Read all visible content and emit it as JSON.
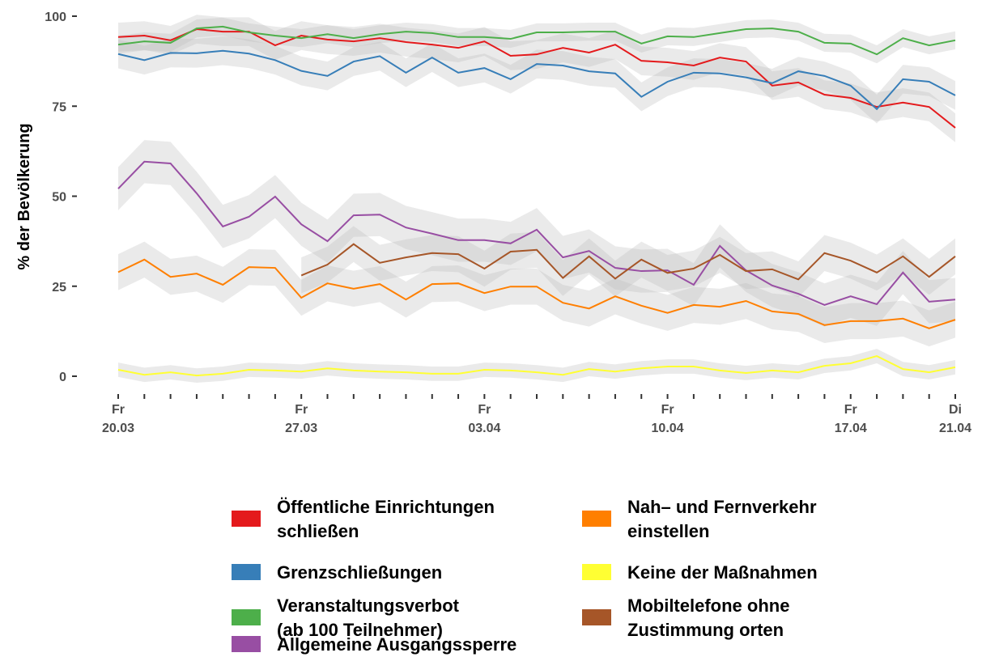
{
  "chart_data": {
    "type": "line",
    "y_label": "% der Bevölkerung",
    "categories": [
      "20.03",
      null,
      null,
      null,
      null,
      null,
      null,
      "27.03",
      null,
      null,
      null,
      null,
      null,
      null,
      "03.04",
      null,
      null,
      null,
      null,
      null,
      null,
      "10.04",
      null,
      null,
      null,
      null,
      null,
      null,
      "17.04",
      null,
      null,
      null,
      "21.04"
    ],
    "weekdays": [
      "Fr",
      null,
      null,
      null,
      null,
      null,
      null,
      "Fr",
      null,
      null,
      null,
      null,
      null,
      null,
      "Fr",
      null,
      null,
      null,
      null,
      null,
      null,
      "Fr",
      null,
      null,
      null,
      null,
      null,
      null,
      "Fr",
      null,
      null,
      null,
      "Di"
    ],
    "ylim": [
      0,
      100
    ],
    "yticks": [
      0,
      25,
      50,
      75,
      100
    ],
    "legend": "bottom",
    "series": [
      {
        "name": "Öffentliche Einrichtungen\nschließen",
        "color": "#e41a1c",
        "band": 4,
        "values": [
          94.2,
          94.6,
          93.3,
          96.4,
          95.7,
          95.7,
          91.9,
          94.6,
          93.5,
          93.0,
          93.9,
          92.8,
          92.1,
          91.2,
          93.0,
          89.0,
          89.4,
          91.2,
          89.9,
          92.1,
          87.6,
          87.2,
          86.3,
          88.5,
          87.4,
          80.7,
          81.6,
          78.2,
          77.3,
          74.8,
          76.0,
          74.8,
          69.0
        ]
      },
      {
        "name": "Grenzschließungen",
        "color": "#377eb8",
        "band": 4,
        "values": [
          89.5,
          87.8,
          89.8,
          89.7,
          90.4,
          89.6,
          87.8,
          84.8,
          83.4,
          87.4,
          88.9,
          84.3,
          88.5,
          84.3,
          85.6,
          82.5,
          86.7,
          86.3,
          84.7,
          84.1,
          77.6,
          81.8,
          84.3,
          84.1,
          83.0,
          81.4,
          84.7,
          83.4,
          80.7,
          74.2,
          82.5,
          81.8,
          78.0
        ]
      },
      {
        "name": "Veranstaltungsverbot\n(ab 100 Teilnehmer)",
        "color": "#4daf4a",
        "band": 2.5,
        "values": [
          92.1,
          93.0,
          92.6,
          96.6,
          97.1,
          95.5,
          94.6,
          93.9,
          95.0,
          93.9,
          95.0,
          95.7,
          95.3,
          94.2,
          94.2,
          93.7,
          95.5,
          95.5,
          95.7,
          95.7,
          92.4,
          94.4,
          94.2,
          95.3,
          96.4,
          96.6,
          95.7,
          92.6,
          92.4,
          89.4,
          93.9,
          91.9,
          93.3
        ]
      },
      {
        "name": "Allgemeine Ausgangssperre",
        "color": "#984ea3",
        "band": 6,
        "values": [
          52.1,
          59.6,
          59.1,
          50.8,
          41.6,
          44.3,
          49.9,
          42.2,
          37.5,
          44.7,
          44.9,
          41.3,
          39.6,
          37.8,
          37.8,
          36.9,
          40.7,
          33.0,
          34.8,
          30.1,
          29.2,
          29.4,
          25.4,
          36.2,
          29.4,
          25.2,
          22.9,
          19.8,
          22.2,
          20.0,
          28.8,
          20.7,
          21.3
        ]
      },
      {
        "name": "Nah– und Fernverkehr\neinstellen",
        "color": "#ff7f00",
        "band": 5,
        "values": [
          28.9,
          32.4,
          27.6,
          28.5,
          25.4,
          30.3,
          30.1,
          21.8,
          25.8,
          24.3,
          25.6,
          21.3,
          25.6,
          25.8,
          23.1,
          24.9,
          24.9,
          20.4,
          18.8,
          22.2,
          19.6,
          17.6,
          19.8,
          19.3,
          20.9,
          18.0,
          17.3,
          14.2,
          15.3,
          15.3,
          16.0,
          13.3,
          15.7
        ]
      },
      {
        "name": "Keine der Maßnahmen",
        "color": "#ffff33",
        "band": 2,
        "values": [
          1.8,
          0.4,
          1.1,
          0.2,
          0.7,
          1.8,
          1.6,
          1.3,
          2.2,
          1.6,
          1.3,
          1.1,
          0.7,
          0.7,
          1.8,
          1.6,
          1.1,
          0.4,
          2.0,
          1.3,
          2.2,
          2.7,
          2.7,
          1.6,
          0.9,
          1.6,
          1.1,
          2.9,
          3.6,
          5.6,
          2.0,
          1.1,
          2.5
        ]
      },
      {
        "name": "Mobiltelefone ohne\nZustimmung orten",
        "color": "#a65628",
        "band": 5,
        "values": [
          null,
          null,
          null,
          null,
          null,
          null,
          null,
          28.0,
          31.0,
          36.7,
          31.5,
          33.0,
          34.2,
          33.9,
          29.9,
          34.6,
          35.1,
          27.3,
          33.3,
          27.1,
          32.4,
          28.7,
          29.9,
          33.7,
          29.2,
          29.7,
          26.9,
          34.2,
          32.1,
          28.8,
          33.3,
          27.6,
          33.3
        ]
      }
    ]
  }
}
